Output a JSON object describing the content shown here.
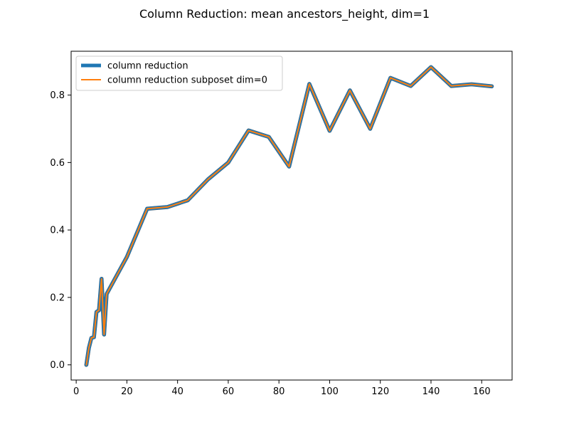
{
  "chart_data": {
    "type": "line",
    "title": "Column Reduction: mean ancestors_height, dim=1",
    "xlabel": "",
    "ylabel": "",
    "xlim": [
      -2.0,
      172.0
    ],
    "ylim": [
      -0.045,
      0.93
    ],
    "xticks": [
      0,
      20,
      40,
      60,
      80,
      100,
      120,
      140,
      160
    ],
    "xtick_labels": [
      "0",
      "20",
      "40",
      "60",
      "80",
      "100",
      "120",
      "140",
      "160"
    ],
    "yticks": [
      0.0,
      0.2,
      0.4,
      0.6,
      0.8
    ],
    "ytick_labels": [
      "0.0",
      "0.2",
      "0.4",
      "0.6",
      "0.8"
    ],
    "grid": false,
    "legend_position": "upper-left",
    "x": [
      4,
      5,
      6,
      7,
      8,
      9,
      10,
      11,
      12,
      20,
      28,
      36,
      44,
      52,
      60,
      68,
      76,
      84,
      92,
      100,
      108,
      116,
      124,
      132,
      140,
      148,
      156,
      164
    ],
    "series": [
      {
        "name": "column reduction",
        "color": "#1f77b4",
        "values": [
          0.0,
          0.05,
          0.08,
          0.082,
          0.157,
          0.162,
          0.255,
          0.09,
          0.21,
          0.32,
          0.463,
          0.468,
          0.488,
          0.55,
          0.6,
          0.695,
          0.676,
          0.588,
          0.833,
          0.694,
          0.814,
          0.7,
          0.851,
          0.827,
          0.883,
          0.827,
          0.832,
          0.826
        ]
      },
      {
        "name": "column reduction subposet dim=0",
        "color": "#ff7f0e",
        "values": [
          0.0,
          0.05,
          0.08,
          0.082,
          0.157,
          0.162,
          0.255,
          0.09,
          0.21,
          0.32,
          0.463,
          0.468,
          0.488,
          0.55,
          0.6,
          0.695,
          0.676,
          0.588,
          0.833,
          0.694,
          0.814,
          0.7,
          0.851,
          0.827,
          0.883,
          0.827,
          0.832,
          0.826
        ]
      }
    ]
  }
}
